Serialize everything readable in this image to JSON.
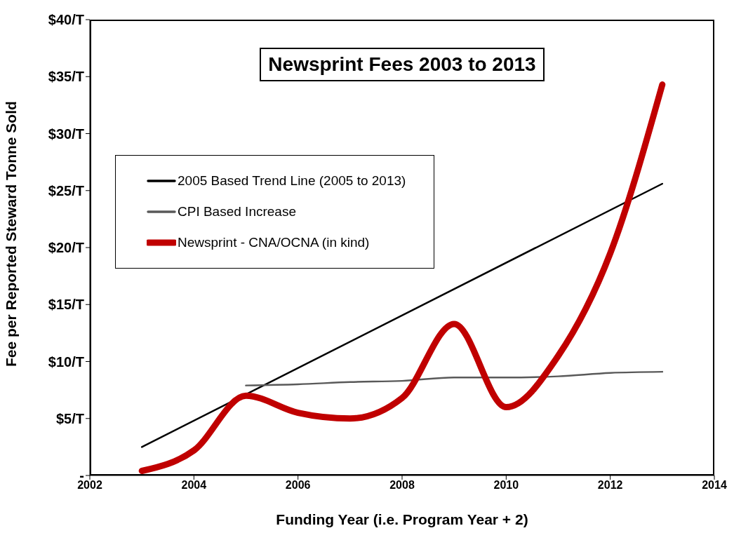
{
  "chart_data": {
    "type": "line",
    "title": "Newsprint Fees 2003 to 2013",
    "xlabel": "Funding Year (i.e. Program Year + 2)",
    "ylabel": "Fee per Reported Steward Tonne Sold",
    "xlim": [
      2002,
      2014
    ],
    "xticks": [
      2002,
      2004,
      2006,
      2008,
      2010,
      2012,
      2014
    ],
    "ylim": [
      0,
      40
    ],
    "yticks": [
      {
        "value": 0,
        "label": "-"
      },
      {
        "value": 5,
        "label": "$5/T"
      },
      {
        "value": 10,
        "label": "$10/T"
      },
      {
        "value": 15,
        "label": "$15/T"
      },
      {
        "value": 20,
        "label": "$20/T"
      },
      {
        "value": 25,
        "label": "$25/T"
      },
      {
        "value": 30,
        "label": "$30/T"
      },
      {
        "value": 35,
        "label": "$35/T"
      },
      {
        "value": 40,
        "label": "$40/T"
      }
    ],
    "grid": false,
    "legend": "top left",
    "marker": "none",
    "line_style": "solid",
    "series": [
      {
        "name": "2005 Based Trend Line (2005 to 2013)",
        "color": "#000000",
        "x": [
          2003,
          2013
        ],
        "values": [
          2.5,
          25.6
        ]
      },
      {
        "name": "CPI Based Increase",
        "color": "#595959",
        "x": [
          2005,
          2006,
          2007,
          2008,
          2009,
          2010,
          2011,
          2012,
          2013
        ],
        "values": [
          7.9,
          8.0,
          8.2,
          8.3,
          8.6,
          8.6,
          8.7,
          9.0,
          9.1
        ]
      },
      {
        "name": "Newsprint - CNA/OCNA (in kind)",
        "color": "#c00000",
        "x": [
          2003,
          2004,
          2005,
          2006,
          2007,
          2008,
          2009,
          2010,
          2011,
          2012,
          2013
        ],
        "values": [
          0.4,
          2.2,
          7.0,
          5.5,
          5.0,
          6.8,
          13.3,
          6.0,
          10.5,
          19.5,
          34.3
        ]
      }
    ]
  }
}
